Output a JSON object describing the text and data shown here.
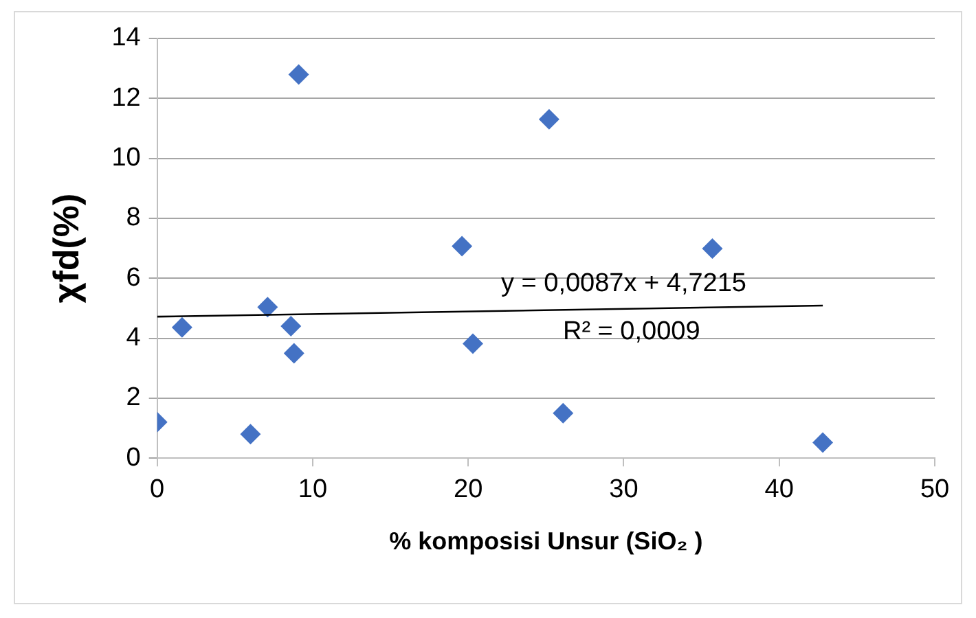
{
  "chart_data": {
    "type": "scatter",
    "xlabel": "% komposisi Unsur (SiO₂ )",
    "ylabel": "χfd(%)",
    "xlim": [
      0,
      50
    ],
    "xticks": [
      0,
      10,
      20,
      30,
      40,
      50
    ],
    "ylim": [
      0,
      14
    ],
    "yticks": [
      0,
      2,
      4,
      6,
      8,
      10,
      12,
      14
    ],
    "grid": "y",
    "legend": false,
    "series": [
      {
        "color": "#4472c4",
        "marker": "diamond",
        "x": [
          0,
          1.6,
          6.0,
          7.1,
          8.6,
          8.8,
          9.1,
          19.6,
          20.3,
          25.2,
          26.1,
          35.7,
          42.8
        ],
        "values": [
          1.2,
          4.36,
          0.8,
          5.04,
          4.4,
          3.5,
          12.8,
          7.07,
          3.82,
          11.3,
          1.5,
          6.99,
          0.52
        ]
      },
      {
        "type": "line",
        "color": "#000000",
        "marker": "none",
        "x": [
          0,
          42.8
        ],
        "values": [
          4.72,
          5.09
        ]
      }
    ],
    "annotations": [
      "y = 0,0087x + 4,7215",
      "R² = 0,0009"
    ]
  }
}
